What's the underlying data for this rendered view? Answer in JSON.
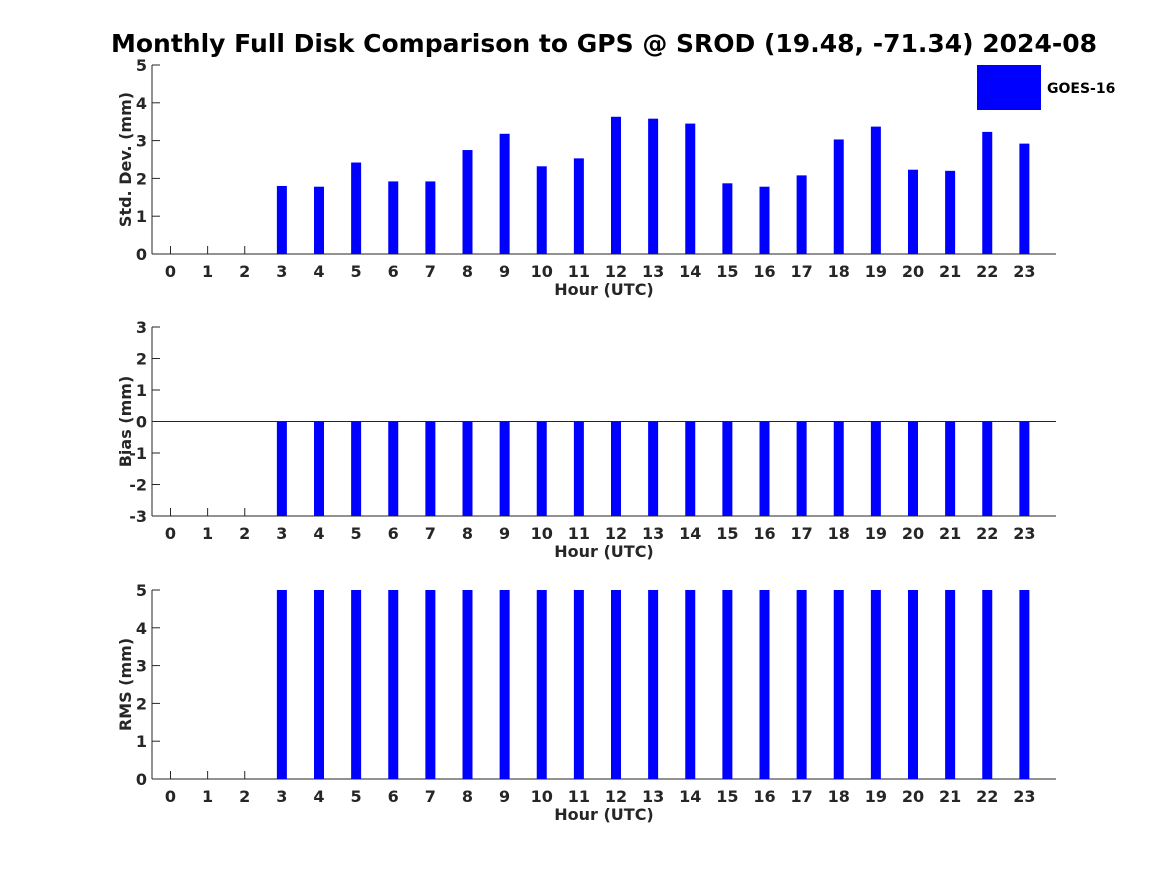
{
  "title": "Monthly Full Disk Comparison to GPS @ SROD (19.48, -71.34) 2024-08",
  "legend": {
    "label": "GOES-16",
    "color": "#0000ff"
  },
  "chart_data": [
    {
      "type": "bar",
      "xlabel": "Hour (UTC)",
      "ylabel": "Std. Dev. (mm)",
      "ylim": [
        0,
        5
      ],
      "yticks": [
        "0",
        "1",
        "2",
        "3",
        "4",
        "5"
      ],
      "categories": [
        "0",
        "1",
        "2",
        "3",
        "4",
        "5",
        "6",
        "7",
        "8",
        "9",
        "10",
        "11",
        "12",
        "13",
        "14",
        "15",
        "16",
        "17",
        "18",
        "19",
        "20",
        "21",
        "22",
        "23"
      ],
      "series": [
        {
          "name": "GOES-16",
          "color": "#0000ff",
          "values": [
            null,
            null,
            null,
            1.8,
            1.78,
            2.42,
            1.92,
            1.92,
            2.75,
            3.18,
            2.32,
            2.53,
            3.63,
            3.58,
            3.45,
            1.87,
            1.78,
            2.08,
            3.03,
            3.37,
            2.23,
            2.2,
            3.23,
            2.92
          ]
        }
      ]
    },
    {
      "type": "bar",
      "xlabel": "Hour (UTC)",
      "ylabel": "Bias (mm)",
      "ylim": [
        -3,
        3
      ],
      "yticks": [
        "-3",
        "-2",
        "-1",
        "0",
        "1",
        "2",
        "3"
      ],
      "categories": [
        "0",
        "1",
        "2",
        "3",
        "4",
        "5",
        "6",
        "7",
        "8",
        "9",
        "10",
        "11",
        "12",
        "13",
        "14",
        "15",
        "16",
        "17",
        "18",
        "19",
        "20",
        "21",
        "22",
        "23"
      ],
      "series": [
        {
          "name": "GOES-16",
          "color": "#0000ff",
          "values": [
            null,
            null,
            null,
            -3,
            -3,
            -3,
            -3,
            -3,
            -3,
            -3,
            -3,
            -3,
            -3,
            -3,
            -3,
            -3,
            -3,
            -3,
            -3,
            -3,
            -3,
            -3,
            -3,
            -3
          ]
        }
      ]
    },
    {
      "type": "bar",
      "xlabel": "Hour (UTC)",
      "ylabel": "RMS (mm)",
      "ylim": [
        0,
        5
      ],
      "yticks": [
        "0",
        "1",
        "2",
        "3",
        "4",
        "5"
      ],
      "categories": [
        "0",
        "1",
        "2",
        "3",
        "4",
        "5",
        "6",
        "7",
        "8",
        "9",
        "10",
        "11",
        "12",
        "13",
        "14",
        "15",
        "16",
        "17",
        "18",
        "19",
        "20",
        "21",
        "22",
        "23"
      ],
      "series": [
        {
          "name": "GOES-16",
          "color": "#0000ff",
          "values": [
            null,
            null,
            null,
            5,
            5,
            5,
            5,
            5,
            5,
            5,
            5,
            5,
            5,
            5,
            5,
            5,
            5,
            5,
            5,
            5,
            5,
            5,
            5,
            5
          ]
        }
      ]
    }
  ]
}
